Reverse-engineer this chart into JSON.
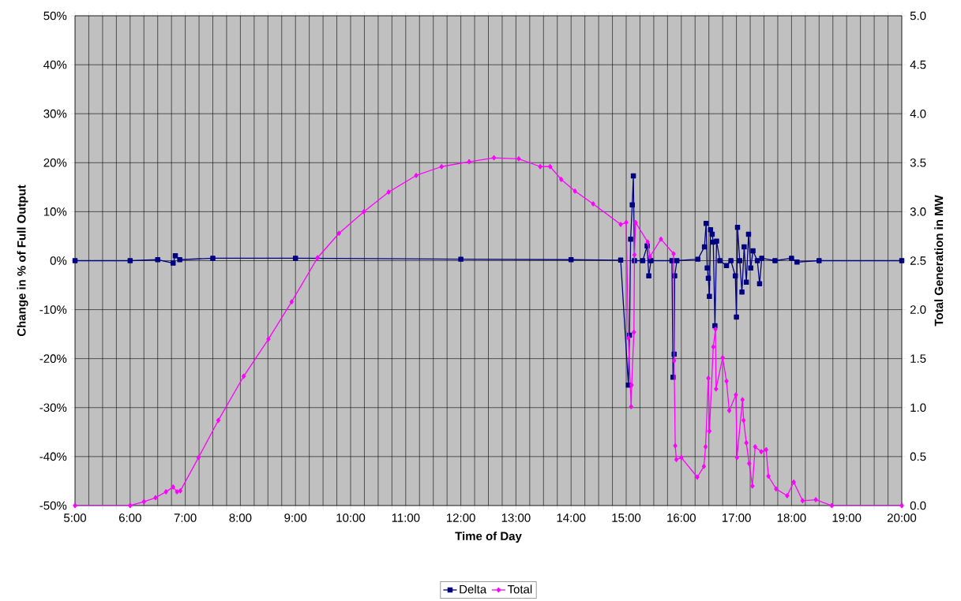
{
  "chart_data": {
    "type": "line",
    "xlabel": "Time of Day",
    "ylabel": "Change in % of Full Output",
    "y2label": "Total Generation in MW",
    "xlim": [
      5,
      20
    ],
    "ylim": [
      -50,
      50
    ],
    "y2lim": [
      0,
      5
    ],
    "xticks": [
      {
        "value": 5,
        "label": "5:00"
      },
      {
        "value": 5.25,
        "label": null
      },
      {
        "value": 5.5,
        "label": null
      },
      {
        "value": 5.75,
        "label": null
      },
      {
        "value": 6,
        "label": "6:00"
      },
      {
        "value": 6.25,
        "label": null
      },
      {
        "value": 6.5,
        "label": null
      },
      {
        "value": 6.75,
        "label": null
      },
      {
        "value": 7,
        "label": "7:00"
      },
      {
        "value": 7.25,
        "label": null
      },
      {
        "value": 7.5,
        "label": null
      },
      {
        "value": 7.75,
        "label": null
      },
      {
        "value": 8,
        "label": "8:00"
      },
      {
        "value": 8.25,
        "label": null
      },
      {
        "value": 8.5,
        "label": null
      },
      {
        "value": 8.75,
        "label": null
      },
      {
        "value": 9,
        "label": "9:00"
      },
      {
        "value": 9.25,
        "label": null
      },
      {
        "value": 9.5,
        "label": null
      },
      {
        "value": 9.75,
        "label": null
      },
      {
        "value": 10,
        "label": "10:00"
      },
      {
        "value": 10.25,
        "label": null
      },
      {
        "value": 10.5,
        "label": null
      },
      {
        "value": 10.75,
        "label": null
      },
      {
        "value": 11,
        "label": "11:00"
      },
      {
        "value": 11.25,
        "label": null
      },
      {
        "value": 11.5,
        "label": null
      },
      {
        "value": 11.75,
        "label": null
      },
      {
        "value": 12,
        "label": "12:00"
      },
      {
        "value": 12.25,
        "label": null
      },
      {
        "value": 12.5,
        "label": null
      },
      {
        "value": 12.75,
        "label": null
      },
      {
        "value": 13,
        "label": "13:00"
      },
      {
        "value": 13.25,
        "label": null
      },
      {
        "value": 13.5,
        "label": null
      },
      {
        "value": 13.75,
        "label": null
      },
      {
        "value": 14,
        "label": "14:00"
      },
      {
        "value": 14.25,
        "label": null
      },
      {
        "value": 14.5,
        "label": null
      },
      {
        "value": 14.75,
        "label": null
      },
      {
        "value": 15,
        "label": "15:00"
      },
      {
        "value": 15.25,
        "label": null
      },
      {
        "value": 15.5,
        "label": null
      },
      {
        "value": 15.75,
        "label": null
      },
      {
        "value": 16,
        "label": "16:00"
      },
      {
        "value": 16.25,
        "label": null
      },
      {
        "value": 16.5,
        "label": null
      },
      {
        "value": 16.75,
        "label": null
      },
      {
        "value": 17,
        "label": "17:00"
      },
      {
        "value": 17.25,
        "label": null
      },
      {
        "value": 17.5,
        "label": null
      },
      {
        "value": 17.75,
        "label": null
      },
      {
        "value": 18,
        "label": "18:00"
      },
      {
        "value": 18.25,
        "label": null
      },
      {
        "value": 18.5,
        "label": null
      },
      {
        "value": 18.75,
        "label": null
      },
      {
        "value": 19,
        "label": "19:00"
      },
      {
        "value": 19.25,
        "label": null
      },
      {
        "value": 19.5,
        "label": null
      },
      {
        "value": 19.75,
        "label": null
      },
      {
        "value": 20,
        "label": "20:00"
      }
    ],
    "yticks": [
      {
        "value": -50,
        "label": "-50%"
      },
      {
        "value": -40,
        "label": "-40%"
      },
      {
        "value": -30,
        "label": "-30%"
      },
      {
        "value": -20,
        "label": "-20%"
      },
      {
        "value": -10,
        "label": "-10%"
      },
      {
        "value": 0,
        "label": "0%"
      },
      {
        "value": 10,
        "label": "10%"
      },
      {
        "value": 20,
        "label": "20%"
      },
      {
        "value": 30,
        "label": "30%"
      },
      {
        "value": 40,
        "label": "40%"
      },
      {
        "value": 50,
        "label": "50%"
      }
    ],
    "y2ticks": [
      {
        "value": 0,
        "label": "0.0"
      },
      {
        "value": 0.5,
        "label": "0.5"
      },
      {
        "value": 1,
        "label": "1.0"
      },
      {
        "value": 1.5,
        "label": "1.5"
      },
      {
        "value": 2,
        "label": "2.0"
      },
      {
        "value": 2.5,
        "label": "2.5"
      },
      {
        "value": 3,
        "label": "3.0"
      },
      {
        "value": 3.5,
        "label": "3.5"
      },
      {
        "value": 4,
        "label": "4.0"
      },
      {
        "value": 4.5,
        "label": "4.5"
      },
      {
        "value": 5,
        "label": "5.0"
      }
    ],
    "grid": true,
    "legend": "bottom",
    "series": [
      {
        "name": "Delta",
        "color": "#000080",
        "marker": "square",
        "x": [
          5.0,
          6.0,
          6.5,
          6.78,
          6.82,
          6.9,
          7.5,
          9.0,
          12.0,
          14.0,
          14.9,
          15.04,
          15.06,
          15.08,
          15.11,
          15.13,
          15.15,
          15.3,
          15.38,
          15.41,
          15.45,
          15.83,
          15.85,
          15.87,
          15.88,
          15.92,
          16.3,
          16.42,
          16.45,
          16.47,
          16.49,
          16.51,
          16.53,
          16.56,
          16.58,
          16.61,
          16.64,
          16.7,
          16.82,
          16.9,
          16.98,
          17.0,
          17.02,
          17.06,
          17.1,
          17.14,
          17.18,
          17.22,
          17.26,
          17.3,
          17.38,
          17.42,
          17.46,
          17.7,
          18.0,
          18.1,
          18.5,
          20.0
        ],
        "values": [
          0,
          0,
          0.2,
          -0.5,
          1.0,
          0.2,
          0.5,
          0.5,
          0.3,
          0.2,
          0.1,
          -25.4,
          -15.2,
          4.4,
          11.4,
          17.3,
          0,
          0,
          3.0,
          -3.1,
          0,
          0,
          -23.8,
          -19.1,
          -3.1,
          0,
          0.3,
          2.8,
          7.6,
          -1.5,
          -3.6,
          -7.3,
          6.3,
          5.4,
          3.8,
          -13.3,
          4.0,
          0,
          -1.0,
          0,
          -3.1,
          -11.5,
          6.8,
          0,
          -6.4,
          2.8,
          -4.4,
          5.4,
          -1.5,
          2.0,
          0,
          -4.7,
          0.5,
          0,
          0.5,
          -0.3,
          0,
          0
        ]
      },
      {
        "name": "Total",
        "color": "#ff00ff",
        "marker": "diamond",
        "axis": "y2",
        "x": [
          5.0,
          6.0,
          6.25,
          6.46,
          6.65,
          6.78,
          6.85,
          6.91,
          7.24,
          7.6,
          8.06,
          8.51,
          8.93,
          9.4,
          9.79,
          10.24,
          10.69,
          11.19,
          11.65,
          12.15,
          12.6,
          13.05,
          13.44,
          13.62,
          13.82,
          14.07,
          14.4,
          14.9,
          15.0,
          15.04,
          15.09,
          15.1,
          15.14,
          15.15,
          15.17,
          15.39,
          15.43,
          15.63,
          15.86,
          15.87,
          15.89,
          15.91,
          16.0,
          16.29,
          16.41,
          16.44,
          16.49,
          16.51,
          16.58,
          16.62,
          16.63,
          16.75,
          16.82,
          16.87,
          16.99,
          17.01,
          17.11,
          17.13,
          17.18,
          17.23,
          17.29,
          17.34,
          17.45,
          17.54,
          17.58,
          17.72,
          17.92,
          18.04,
          18.2,
          18.44,
          18.73,
          20.0
        ],
        "values": [
          0,
          0,
          0.04,
          0.08,
          0.14,
          0.19,
          0.14,
          0.15,
          0.49,
          0.87,
          1.32,
          1.7,
          2.08,
          2.53,
          2.78,
          3.0,
          3.2,
          3.37,
          3.46,
          3.51,
          3.55,
          3.54,
          3.46,
          3.46,
          3.33,
          3.21,
          3.08,
          2.87,
          2.89,
          1.71,
          1.01,
          1.23,
          1.77,
          2.56,
          2.89,
          2.69,
          2.54,
          2.72,
          2.57,
          1.48,
          0.61,
          0.47,
          0.49,
          0.29,
          0.4,
          0.6,
          1.3,
          0.76,
          1.62,
          1.8,
          1.19,
          1.51,
          1.27,
          0.97,
          1.13,
          0.49,
          1.08,
          0.87,
          0.64,
          0.43,
          0.2,
          0.6,
          0.55,
          0.57,
          0.3,
          0.17,
          0.1,
          0.24,
          0.05,
          0.06,
          0,
          0
        ]
      }
    ]
  }
}
